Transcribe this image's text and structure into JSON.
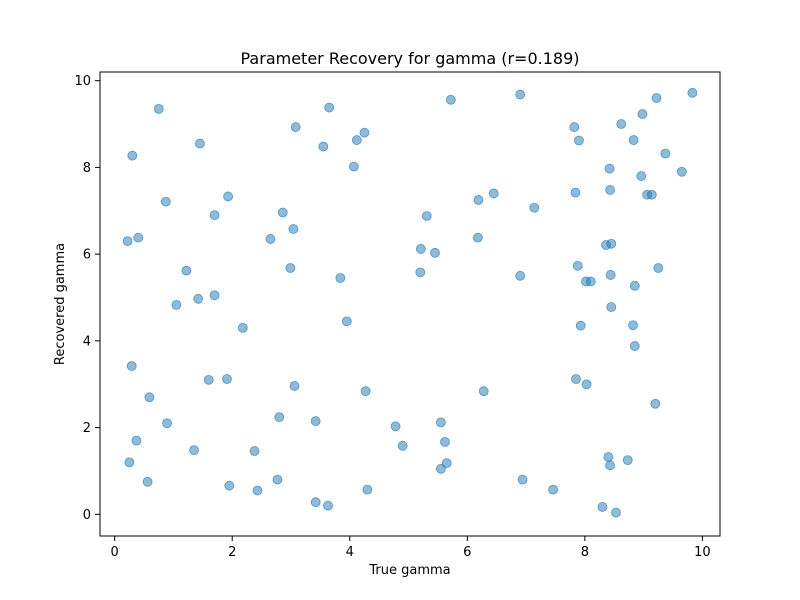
{
  "chart_data": {
    "type": "scatter",
    "title": "Parameter Recovery for gamma (r=0.189)",
    "xlabel": "True gamma",
    "ylabel": "Recovered gamma",
    "xlim": [
      -0.25,
      10.3
    ],
    "ylim": [
      -0.5,
      10.2
    ],
    "xticks": [
      0,
      2,
      4,
      6,
      8,
      10
    ],
    "yticks": [
      0,
      2,
      4,
      6,
      8,
      10
    ],
    "grid": false,
    "point_color": "#1f77b4",
    "point_opacity": 0.5,
    "points": [
      [
        0.75,
        9.35
      ],
      [
        3.65,
        9.38
      ],
      [
        5.72,
        9.56
      ],
      [
        6.9,
        9.68
      ],
      [
        9.83,
        9.72
      ],
      [
        9.22,
        9.6
      ],
      [
        8.98,
        9.23
      ],
      [
        8.62,
        9.0
      ],
      [
        7.82,
        8.93
      ],
      [
        3.08,
        8.93
      ],
      [
        4.25,
        8.8
      ],
      [
        4.12,
        8.63
      ],
      [
        3.55,
        8.48
      ],
      [
        1.45,
        8.55
      ],
      [
        0.3,
        8.27
      ],
      [
        7.9,
        8.62
      ],
      [
        8.83,
        8.63
      ],
      [
        9.37,
        8.32
      ],
      [
        4.07,
        8.02
      ],
      [
        8.42,
        7.97
      ],
      [
        8.96,
        7.8
      ],
      [
        9.65,
        7.9
      ],
      [
        8.43,
        7.48
      ],
      [
        7.84,
        7.42
      ],
      [
        6.45,
        7.4
      ],
      [
        9.06,
        7.37
      ],
      [
        9.14,
        7.37
      ],
      [
        6.19,
        7.25
      ],
      [
        7.14,
        7.07
      ],
      [
        0.87,
        7.21
      ],
      [
        1.93,
        7.33
      ],
      [
        1.7,
        6.9
      ],
      [
        2.86,
        6.96
      ],
      [
        5.31,
        6.88
      ],
      [
        3.04,
        6.58
      ],
      [
        0.22,
        6.3
      ],
      [
        0.4,
        6.38
      ],
      [
        2.65,
        6.35
      ],
      [
        6.18,
        6.38
      ],
      [
        8.36,
        6.21
      ],
      [
        8.45,
        6.24
      ],
      [
        5.21,
        6.12
      ],
      [
        5.45,
        6.03
      ],
      [
        7.88,
        5.73
      ],
      [
        9.25,
        5.68
      ],
      [
        2.99,
        5.68
      ],
      [
        1.22,
        5.62
      ],
      [
        5.2,
        5.58
      ],
      [
        6.9,
        5.5
      ],
      [
        8.44,
        5.52
      ],
      [
        3.84,
        5.45
      ],
      [
        8.02,
        5.37
      ],
      [
        8.1,
        5.37
      ],
      [
        8.85,
        5.27
      ],
      [
        1.7,
        5.05
      ],
      [
        1.42,
        4.97
      ],
      [
        1.05,
        4.83
      ],
      [
        8.45,
        4.78
      ],
      [
        3.95,
        4.45
      ],
      [
        7.93,
        4.35
      ],
      [
        8.82,
        4.36
      ],
      [
        2.18,
        4.3
      ],
      [
        8.85,
        3.88
      ],
      [
        0.29,
        3.42
      ],
      [
        1.6,
        3.1
      ],
      [
        1.91,
        3.12
      ],
      [
        7.85,
        3.12
      ],
      [
        8.03,
        3.0
      ],
      [
        3.06,
        2.96
      ],
      [
        4.27,
        2.84
      ],
      [
        6.28,
        2.84
      ],
      [
        0.59,
        2.7
      ],
      [
        9.2,
        2.55
      ],
      [
        2.8,
        2.24
      ],
      [
        3.42,
        2.15
      ],
      [
        0.89,
        2.1
      ],
      [
        5.55,
        2.12
      ],
      [
        4.78,
        2.03
      ],
      [
        0.37,
        1.7
      ],
      [
        5.62,
        1.67
      ],
      [
        4.9,
        1.58
      ],
      [
        1.35,
        1.48
      ],
      [
        2.38,
        1.46
      ],
      [
        8.4,
        1.32
      ],
      [
        8.73,
        1.25
      ],
      [
        0.25,
        1.2
      ],
      [
        5.65,
        1.18
      ],
      [
        8.43,
        1.13
      ],
      [
        5.55,
        1.05
      ],
      [
        0.56,
        0.75
      ],
      [
        1.95,
        0.66
      ],
      [
        2.77,
        0.8
      ],
      [
        6.94,
        0.8
      ],
      [
        2.43,
        0.55
      ],
      [
        4.3,
        0.57
      ],
      [
        7.46,
        0.57
      ],
      [
        3.42,
        0.28
      ],
      [
        3.63,
        0.2
      ],
      [
        8.3,
        0.17
      ],
      [
        8.53,
        0.04
      ]
    ]
  }
}
